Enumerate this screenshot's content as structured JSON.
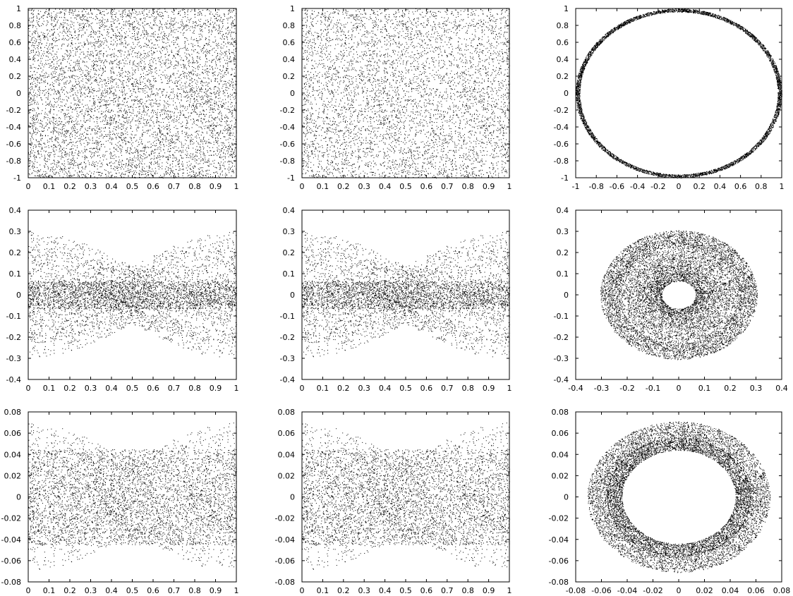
{
  "chart_data": [
    {
      "type": "scatter",
      "density": "uniform-strip",
      "xlim": [
        0,
        1
      ],
      "ylim": [
        -1,
        1
      ],
      "xticks": [
        "0",
        "0.1",
        "0.2",
        "0.3",
        "0.4",
        "0.5",
        "0.6",
        "0.7",
        "0.8",
        "0.9",
        "1"
      ],
      "yticks": [
        "1",
        "0.8",
        "0.6",
        "0.4",
        "0.2",
        "0",
        "-0.2",
        "-0.4",
        "-0.6",
        "-0.8",
        "-1"
      ],
      "bands": [
        {
          "inner": 0,
          "outer": 1,
          "weight": 1
        }
      ]
    },
    {
      "type": "scatter",
      "density": "uniform-strip",
      "xlim": [
        0,
        1
      ],
      "ylim": [
        -1,
        1
      ],
      "xticks": [
        "0",
        "0.1",
        "0.2",
        "0.3",
        "0.4",
        "0.5",
        "0.6",
        "0.7",
        "0.8",
        "0.9",
        "1"
      ],
      "yticks": [
        "1",
        "0.8",
        "0.6",
        "0.4",
        "0.2",
        "0",
        "-0.2",
        "-0.4",
        "-0.6",
        "-0.8",
        "-1"
      ],
      "bands": [
        {
          "inner": 0,
          "outer": 1,
          "weight": 1
        }
      ]
    },
    {
      "type": "scatter",
      "density": "ring",
      "xlim": [
        -1,
        1
      ],
      "ylim": [
        -1,
        1
      ],
      "xticks": [
        "-1",
        "-0.8",
        "-0.6",
        "-0.4",
        "-0.2",
        "0",
        "0.2",
        "0.4",
        "0.6",
        "0.8",
        "1"
      ],
      "yticks": [
        "1",
        "0.8",
        "0.6",
        "0.4",
        "0.2",
        "0",
        "-0.2",
        "-0.4",
        "-0.6",
        "-0.8",
        "-1"
      ],
      "rings": [
        {
          "rmin": 0.96,
          "rmax": 1.0,
          "count": 9000
        }
      ]
    },
    {
      "type": "scatter",
      "density": "banded-strip",
      "xlim": [
        0,
        1
      ],
      "ylim": [
        -0.4,
        0.4
      ],
      "xticks": [
        "0",
        "0.1",
        "0.2",
        "0.3",
        "0.4",
        "0.5",
        "0.6",
        "0.7",
        "0.8",
        "0.9",
        "1"
      ],
      "yticks": [
        "0.4",
        "0.3",
        "0.2",
        "0.1",
        "0",
        "-0.1",
        "-0.2",
        "-0.3",
        "-0.4"
      ],
      "bands": [
        {
          "inner": 0,
          "outer": 0.3,
          "weight": 0.35
        },
        {
          "inner": 0,
          "outer": 0.23,
          "weight": 0.25
        },
        {
          "inner": 0,
          "outer": 0.065,
          "weight": 0.4
        }
      ]
    },
    {
      "type": "scatter",
      "density": "banded-strip",
      "xlim": [
        0,
        1
      ],
      "ylim": [
        -0.4,
        0.4
      ],
      "xticks": [
        "0",
        "0.1",
        "0.2",
        "0.3",
        "0.4",
        "0.5",
        "0.6",
        "0.7",
        "0.8",
        "0.9",
        "1"
      ],
      "yticks": [
        "0.4",
        "0.3",
        "0.2",
        "0.1",
        "0",
        "-0.1",
        "-0.2",
        "-0.3",
        "-0.4"
      ],
      "bands": [
        {
          "inner": 0,
          "outer": 0.3,
          "weight": 0.35
        },
        {
          "inner": 0,
          "outer": 0.23,
          "weight": 0.25
        },
        {
          "inner": 0,
          "outer": 0.065,
          "weight": 0.4
        }
      ]
    },
    {
      "type": "scatter",
      "density": "ring",
      "xlim": [
        -0.4,
        0.4
      ],
      "ylim": [
        -0.4,
        0.4
      ],
      "xticks": [
        "-0.4",
        "-0.3",
        "-0.2",
        "-0.1",
        "0",
        "0.1",
        "0.2",
        "0.3",
        "0.4"
      ],
      "yticks": [
        "0.4",
        "0.3",
        "0.2",
        "0.1",
        "0",
        "-0.1",
        "-0.2",
        "-0.3",
        "-0.4"
      ],
      "rings": [
        {
          "rmin": 0.23,
          "rmax": 0.305,
          "count": 4500
        },
        {
          "rmin": 0.065,
          "rmax": 0.23,
          "count": 9000
        }
      ]
    },
    {
      "type": "scatter",
      "density": "banded-strip",
      "xlim": [
        0,
        1
      ],
      "ylim": [
        -0.08,
        0.08
      ],
      "xticks": [
        "0",
        "0.1",
        "0.2",
        "0.3",
        "0.4",
        "0.5",
        "0.6",
        "0.7",
        "0.8",
        "0.9",
        "1"
      ],
      "yticks": [
        "0.08",
        "0.06",
        "0.04",
        "0.02",
        "0",
        "-0.02",
        "-0.04",
        "-0.06",
        "-0.08"
      ],
      "bands": [
        {
          "inner": 0,
          "outer": 0.07,
          "weight": 0.3
        },
        {
          "inner": 0,
          "outer": 0.045,
          "weight": 0.7
        }
      ]
    },
    {
      "type": "scatter",
      "density": "banded-strip",
      "xlim": [
        0,
        1
      ],
      "ylim": [
        -0.08,
        0.08
      ],
      "xticks": [
        "0",
        "0.1",
        "0.2",
        "0.3",
        "0.4",
        "0.5",
        "0.6",
        "0.7",
        "0.8",
        "0.9",
        "1"
      ],
      "yticks": [
        "0.08",
        "0.06",
        "0.04",
        "0.02",
        "0",
        "-0.02",
        "-0.04",
        "-0.06",
        "-0.08"
      ],
      "bands": [
        {
          "inner": 0,
          "outer": 0.07,
          "weight": 0.3
        },
        {
          "inner": 0,
          "outer": 0.045,
          "weight": 0.7
        }
      ]
    },
    {
      "type": "scatter",
      "density": "ring",
      "xlim": [
        -0.08,
        0.08
      ],
      "ylim": [
        -0.08,
        0.08
      ],
      "xticks": [
        "-0.08",
        "-0.06",
        "-0.04",
        "-0.02",
        "0",
        "0.02",
        "0.04",
        "0.06",
        "0.08"
      ],
      "yticks": [
        "0.08",
        "0.06",
        "0.04",
        "0.02",
        "0",
        "-0.02",
        "-0.04",
        "-0.06",
        "-0.08"
      ],
      "rings": [
        {
          "rmin": 0.055,
          "rmax": 0.071,
          "count": 4500
        },
        {
          "rmin": 0.044,
          "rmax": 0.056,
          "count": 9000
        }
      ]
    }
  ],
  "colors": {
    "points": "#000000",
    "frame": "#000000",
    "background": "#ffffff"
  }
}
